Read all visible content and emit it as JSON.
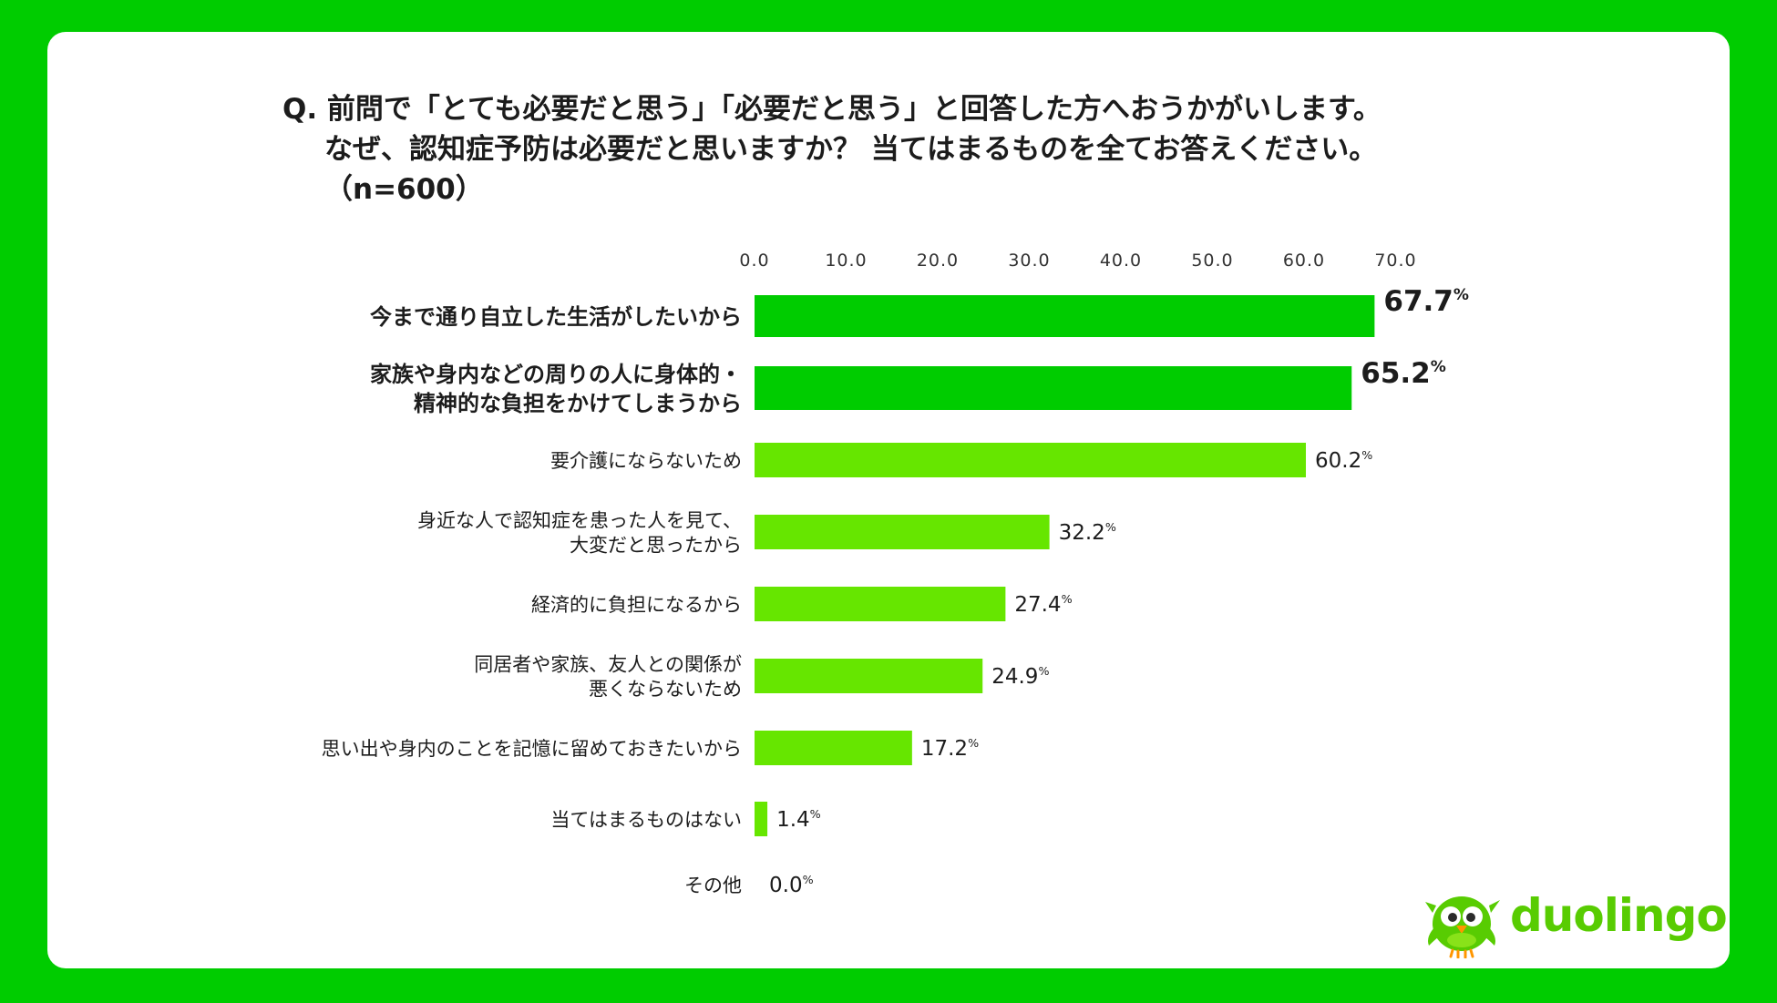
{
  "title": {
    "line1": "Q. 前問で「とても必要だと思う」「必要だと思う」と回答した方へおうかがいします。",
    "line2": "なぜ、認知症予防は必要だと思いますか？ 当てはまるものを全てお答えください。",
    "line3": "（n=600）"
  },
  "brand": {
    "logo_text": "duolingo",
    "color": "#58cc02"
  },
  "colors": {
    "background": "#00cc00",
    "bar_top": "#00cc00",
    "bar_other": "#66e600"
  },
  "chart_data": {
    "type": "bar",
    "orientation": "horizontal",
    "xlim": [
      0,
      70
    ],
    "ticks": [
      "0.0",
      "10.0",
      "20.0",
      "30.0",
      "40.0",
      "50.0",
      "60.0",
      "70.0"
    ],
    "tick_values": [
      0,
      10,
      20,
      30,
      40,
      50,
      60,
      70
    ],
    "unit": "%",
    "categories": [
      [
        "今まで通り自立した生活がしたいから"
      ],
      [
        "家族や身内などの周りの人に身体的・",
        "精神的な負担をかけてしまうから"
      ],
      [
        "要介護にならないため"
      ],
      [
        "身近な人で認知症を患った人を見て、",
        "大変だと思ったから"
      ],
      [
        "経済的に負担になるから"
      ],
      [
        "同居者や家族、友人との関係が",
        "悪くならないため"
      ],
      [
        "思い出や身内のことを記憶に留めておきたいから"
      ],
      [
        "当てはまるものはない"
      ],
      [
        "その他"
      ]
    ],
    "values": [
      67.7,
      65.2,
      60.2,
      32.2,
      27.4,
      24.9,
      17.2,
      1.4,
      0.0
    ],
    "value_labels": [
      "67.7",
      "65.2",
      "60.2",
      "32.2",
      "27.4",
      "24.9",
      "17.2",
      "1.4",
      "0.0"
    ],
    "highlighted": [
      true,
      true,
      false,
      false,
      false,
      false,
      false,
      false,
      false
    ]
  }
}
